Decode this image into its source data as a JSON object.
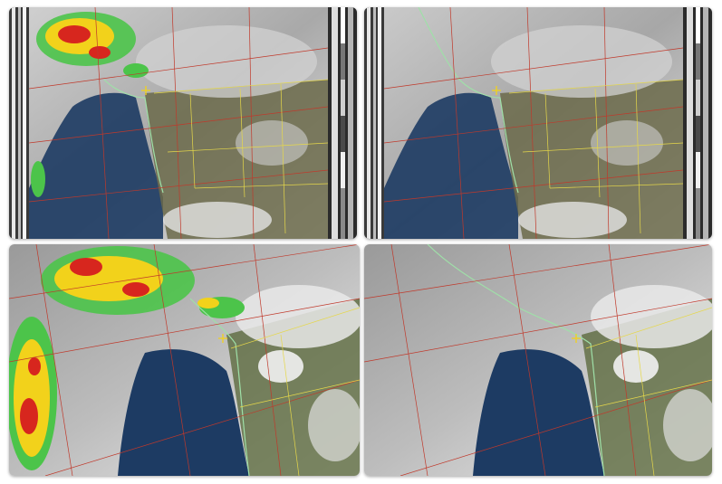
{
  "gallery": {
    "panels": [
      {
        "id": "p1",
        "variant": "precipitation-overlay",
        "has_sync_bars": true
      },
      {
        "id": "p2",
        "variant": "multispectral",
        "has_sync_bars": true
      },
      {
        "id": "p3",
        "variant": "precipitation-overlay",
        "has_sync_bars": false
      },
      {
        "id": "p4",
        "variant": "multispectral",
        "has_sync_bars": false
      }
    ]
  },
  "colors": {
    "ocean": "#1d3b63",
    "land": "#6b6a4a",
    "cloud": "#d8d8d8",
    "grid_line": "#c0392b",
    "border_line": "#e6d84a",
    "coast_line": "#9fe0a8",
    "precip_red": "#d7261e",
    "precip_yellow": "#f2d21b",
    "precip_green": "#4cc44a"
  },
  "icons": {
    "location_marker": "crosshair-icon"
  }
}
